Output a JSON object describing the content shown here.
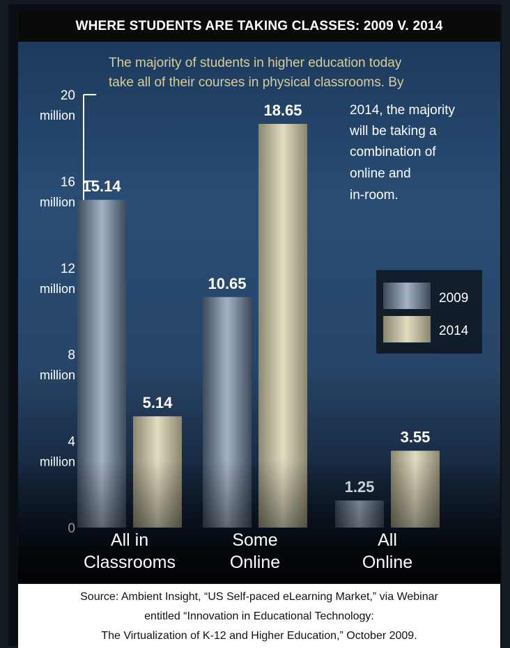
{
  "title": "WHERE STUDENTS ARE TAKING CLASSES: 2009 V. 2014",
  "annotation": {
    "line1": "The majority of students in higher education today",
    "line2": "take all of their courses in physical classrooms. By",
    "line3": "2014, the majority",
    "line4": "will be taking a",
    "line5": "combination of",
    "line6": "online and",
    "line7": "in-room."
  },
  "source": {
    "line1": "Source: Ambient Insight, “US Self-paced eLearning Market,” via Webinar",
    "line2": "entitled “Innovation in Educational Technology:",
    "line3": "The Virtualization of K-12 and Higher Education,” October 2009."
  },
  "colors": {
    "series_2009": "#8a9bb0",
    "series_2014": "#ccc6a8",
    "annotation_text": "#d6cf9a",
    "axis_text": "#ffffff"
  },
  "chart_data": {
    "type": "bar",
    "categories": [
      "All in Classrooms",
      "Some Online",
      "All Online"
    ],
    "category_lines": [
      [
        "All in",
        "Classrooms"
      ],
      [
        "Some",
        "Online"
      ],
      [
        "All",
        "Online"
      ]
    ],
    "series": [
      {
        "name": "2009",
        "values": [
          15.14,
          10.65,
          1.25
        ],
        "labels": [
          "15.14",
          "10.65",
          "1.25"
        ]
      },
      {
        "name": "2014",
        "values": [
          5.14,
          18.65,
          3.55
        ],
        "labels": [
          "5.14",
          "18.65",
          "3.55"
        ]
      }
    ],
    "ylim": [
      0,
      20
    ],
    "yticks": [
      {
        "value": 0,
        "label": "0",
        "unit": ""
      },
      {
        "value": 4,
        "label": "4",
        "unit": "million"
      },
      {
        "value": 8,
        "label": "8",
        "unit": "million"
      },
      {
        "value": 12,
        "label": "12",
        "unit": "million"
      },
      {
        "value": 16,
        "label": "16",
        "unit": "million"
      },
      {
        "value": 20,
        "label": "20",
        "unit": "million"
      }
    ],
    "legend_position": "right",
    "grid": false
  }
}
